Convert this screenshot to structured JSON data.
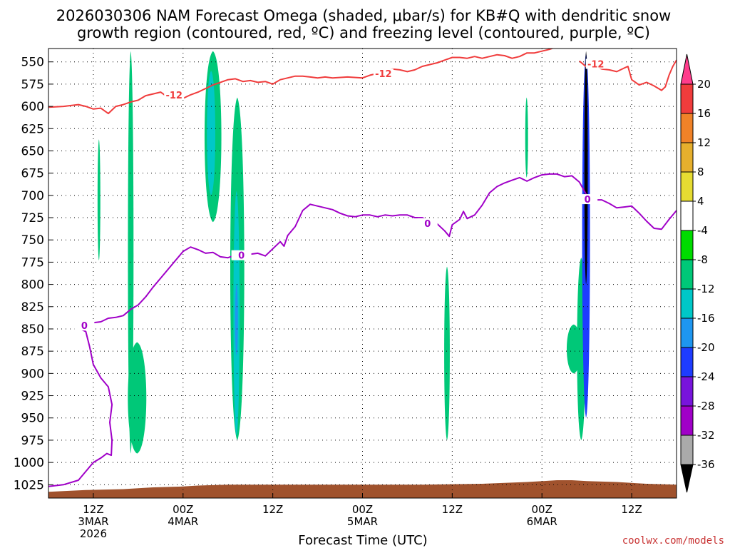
{
  "chart_data": {
    "type": "heatmap",
    "title_line1": "2026030306 NAM Forecast Omega (shaded, μbar/s) for KB#Q with dendritic snow",
    "title_line2": "growth region (contoured, red, ºC) and freezing level (contoured, purple, ºC)",
    "xlabel": "Forecast Time (UTC)",
    "ylabel": "",
    "y_axis": {
      "reversed": true,
      "unit": "hPa",
      "ticks": [
        550,
        575,
        600,
        625,
        650,
        675,
        700,
        725,
        750,
        775,
        800,
        825,
        850,
        875,
        900,
        925,
        950,
        975,
        1000,
        1025
      ],
      "range": [
        535,
        1040
      ]
    },
    "x_axis": {
      "unit": "hours from 2026030306",
      "range": [
        0,
        84
      ],
      "ticks": [
        {
          "x": 6,
          "lines": [
            "12Z",
            "3MAR",
            "2026"
          ]
        },
        {
          "x": 18,
          "lines": [
            "00Z",
            "4MAR"
          ]
        },
        {
          "x": 30,
          "lines": [
            "12Z"
          ]
        },
        {
          "x": 42,
          "lines": [
            "00Z",
            "5MAR"
          ]
        },
        {
          "x": 54,
          "lines": [
            "12Z"
          ]
        },
        {
          "x": 66,
          "lines": [
            "00Z",
            "6MAR"
          ]
        },
        {
          "x": 78,
          "lines": [
            "12Z"
          ]
        }
      ]
    },
    "grid": "dotted",
    "colorbar": {
      "labels": [
        "20",
        "16",
        "12",
        "8",
        "4",
        "-4",
        "-8",
        "-12",
        "-16",
        "-20",
        "-24",
        "-28",
        "-32",
        "-36"
      ],
      "levels": [
        20,
        16,
        12,
        8,
        4,
        -4,
        -8,
        -12,
        -16,
        -20,
        -24,
        -28,
        -32,
        -36
      ],
      "colors": [
        "#ff3c8c",
        "#f03c3c",
        "#f08228",
        "#e6af2d",
        "#e6dc32",
        "#ffffff",
        "#00dc00",
        "#00c878",
        "#00c8c8",
        "#1e96f0",
        "#1e3cff",
        "#7814dc",
        "#a000c8",
        "#aaaaaa",
        "#000000"
      ]
    },
    "dgz_contour": {
      "color": "#f03c3c",
      "label": "-12",
      "points": [
        [
          0,
          601
        ],
        [
          2,
          600
        ],
        [
          4,
          598
        ],
        [
          5,
          600
        ],
        [
          6,
          603
        ],
        [
          7,
          602
        ],
        [
          8,
          608
        ],
        [
          9,
          600
        ],
        [
          10,
          598
        ],
        [
          11,
          595
        ],
        [
          12,
          593
        ],
        [
          13,
          588
        ],
        [
          14,
          586
        ],
        [
          15,
          584
        ],
        [
          16,
          590
        ],
        [
          17,
          589
        ],
        [
          18,
          591
        ],
        [
          19,
          587
        ],
        [
          20,
          584
        ],
        [
          21,
          580
        ],
        [
          22,
          576
        ],
        [
          23,
          573
        ],
        [
          24,
          570
        ],
        [
          25,
          569
        ],
        [
          26,
          572
        ],
        [
          27,
          571
        ],
        [
          28,
          573
        ],
        [
          29,
          572
        ],
        [
          30,
          575
        ],
        [
          31,
          570
        ],
        [
          32,
          568
        ],
        [
          33,
          566
        ],
        [
          34,
          566
        ],
        [
          35,
          567
        ],
        [
          36,
          568
        ],
        [
          37,
          567
        ],
        [
          38,
          568
        ],
        [
          40,
          567
        ],
        [
          42,
          568
        ],
        [
          43,
          565
        ],
        [
          44,
          563
        ],
        [
          45,
          560
        ],
        [
          46,
          558
        ],
        [
          47,
          559
        ],
        [
          48,
          561
        ],
        [
          49,
          559
        ],
        [
          50,
          555
        ],
        [
          51,
          553
        ],
        [
          52,
          551
        ],
        [
          53,
          548
        ],
        [
          54,
          545
        ],
        [
          55,
          545
        ],
        [
          56,
          546
        ],
        [
          57,
          544
        ],
        [
          58,
          546
        ],
        [
          59,
          544
        ],
        [
          60,
          542
        ],
        [
          61,
          543
        ],
        [
          62,
          546
        ],
        [
          63,
          544
        ],
        [
          64,
          540
        ],
        [
          65,
          540
        ],
        [
          66,
          538
        ],
        [
          67,
          536
        ],
        [
          68,
          533
        ],
        [
          69,
          530
        ],
        [
          70,
          530
        ],
        [
          70.5,
          533
        ]
      ]
    },
    "dgz_contour_right": {
      "color": "#f03c3c",
      "points": [
        [
          71,
          549
        ],
        [
          72,
          556
        ],
        [
          73,
          555
        ],
        [
          74,
          558
        ],
        [
          75,
          559
        ],
        [
          76,
          561
        ],
        [
          77,
          557
        ],
        [
          77.5,
          555
        ],
        [
          78,
          570
        ],
        [
          79,
          576
        ],
        [
          80,
          573
        ],
        [
          81,
          577
        ],
        [
          82,
          582
        ],
        [
          82.5,
          578
        ],
        [
          83,
          565
        ],
        [
          83.5,
          555
        ],
        [
          84,
          548
        ]
      ]
    },
    "fz_contour": {
      "color": "#a000c8",
      "label": "0",
      "points": [
        [
          4,
          849
        ],
        [
          5,
          845
        ],
        [
          6,
          843
        ],
        [
          7,
          842
        ],
        [
          8,
          838
        ],
        [
          9,
          837
        ],
        [
          10,
          835
        ],
        [
          11,
          828
        ],
        [
          12,
          823
        ],
        [
          13,
          814
        ],
        [
          14,
          803
        ],
        [
          15,
          793
        ],
        [
          16,
          783
        ],
        [
          17,
          773
        ],
        [
          18,
          763
        ],
        [
          19,
          758
        ],
        [
          20,
          761
        ],
        [
          21,
          765
        ],
        [
          22,
          764
        ],
        [
          23,
          769
        ],
        [
          24,
          770
        ],
        [
          25,
          767
        ],
        [
          26,
          770
        ],
        [
          27,
          766
        ],
        [
          28,
          765
        ],
        [
          29,
          768
        ],
        [
          30,
          760
        ],
        [
          31,
          752
        ],
        [
          31.5,
          757
        ],
        [
          32,
          745
        ],
        [
          33,
          735
        ],
        [
          34,
          717
        ],
        [
          35,
          710
        ],
        [
          36,
          712
        ],
        [
          37,
          714
        ],
        [
          38,
          716
        ],
        [
          39,
          720
        ],
        [
          40,
          723
        ],
        [
          41,
          724
        ],
        [
          42,
          722
        ],
        [
          43,
          722
        ],
        [
          44,
          724
        ],
        [
          45,
          722
        ],
        [
          46,
          723
        ],
        [
          47,
          722
        ],
        [
          48,
          722
        ],
        [
          49,
          725
        ],
        [
          50,
          725
        ],
        [
          51,
          729
        ],
        [
          52,
          732
        ],
        [
          53,
          740
        ],
        [
          53.6,
          746
        ],
        [
          54,
          733
        ],
        [
          55,
          727
        ],
        [
          55.5,
          718
        ],
        [
          56,
          726
        ],
        [
          57,
          722
        ],
        [
          58,
          711
        ],
        [
          59,
          697
        ],
        [
          60,
          690
        ],
        [
          61,
          686
        ],
        [
          62,
          683
        ],
        [
          63,
          680
        ],
        [
          64,
          684
        ],
        [
          65,
          680
        ],
        [
          66,
          677
        ],
        [
          67,
          676
        ],
        [
          68,
          676
        ],
        [
          69,
          679
        ],
        [
          70,
          678
        ],
        [
          71,
          685
        ],
        [
          72,
          700
        ],
        [
          73,
          705
        ],
        [
          74,
          705
        ],
        [
          75,
          709
        ],
        [
          76,
          714
        ],
        [
          77,
          713
        ],
        [
          78,
          712
        ],
        [
          79,
          720
        ],
        [
          80,
          729
        ],
        [
          81,
          737
        ],
        [
          82,
          738
        ],
        [
          83,
          727
        ],
        [
          84,
          717
        ]
      ]
    },
    "fz_contour_lower": {
      "color": "#a000c8",
      "points": [
        [
          4,
          849
        ],
        [
          5,
          853
        ],
        [
          5.5,
          870
        ],
        [
          6,
          890
        ],
        [
          7,
          905
        ],
        [
          8,
          915
        ],
        [
          8.5,
          935
        ],
        [
          8.2,
          955
        ],
        [
          8.5,
          975
        ],
        [
          8.4,
          992
        ],
        [
          7.8,
          990
        ],
        [
          7,
          995
        ],
        [
          6,
          1000
        ],
        [
          5,
          1010
        ],
        [
          4,
          1020
        ],
        [
          2,
          1025
        ],
        [
          0,
          1027
        ]
      ]
    },
    "omega_shading": [
      {
        "level": "-8",
        "x": [
          6.5,
          7
        ],
        "p": [
          637,
          773
        ]
      },
      {
        "level": "-8",
        "x": [
          10.5,
          11.5
        ],
        "p": [
          538,
          990
        ]
      },
      {
        "level": "-8",
        "x": [
          10.2,
          13.5
        ],
        "p": [
          865,
          990
        ]
      },
      {
        "level": "-8",
        "x": [
          20.5,
          23.5
        ],
        "p": [
          538,
          730
        ]
      },
      {
        "level": "-8",
        "x": [
          24,
          26.5
        ],
        "p": [
          590,
          975
        ]
      },
      {
        "level": "-8",
        "x": [
          52.8,
          53.8
        ],
        "p": [
          780,
          975
        ]
      },
      {
        "level": "-8",
        "x": [
          63.7,
          64.2
        ],
        "p": [
          590,
          680
        ]
      },
      {
        "level": "-8",
        "x": [
          69,
          71.5
        ],
        "p": [
          845,
          900
        ]
      },
      {
        "level": "-8",
        "x": [
          70.5,
          72
        ],
        "p": [
          770,
          975
        ]
      },
      {
        "level": "-12",
        "x": [
          21,
          22.5
        ],
        "p": [
          560,
          700
        ]
      },
      {
        "level": "-12",
        "x": [
          24.6,
          25.7
        ],
        "p": [
          695,
          970
        ]
      },
      {
        "level": "-16",
        "x": [
          24.9,
          25.4
        ],
        "p": [
          800,
          880
        ]
      },
      {
        "level": "-20",
        "x": [
          71.2,
          72.6
        ],
        "p": [
          540,
          950
        ]
      },
      {
        "level": "-36",
        "x": [
          71.6,
          72.2
        ],
        "p": [
          538,
          800
        ]
      }
    ],
    "terrain": {
      "color": "#a0522d",
      "points": [
        [
          0,
          1033
        ],
        [
          5,
          1031
        ],
        [
          10,
          1030
        ],
        [
          14,
          1028
        ],
        [
          18,
          1027
        ],
        [
          20,
          1026
        ],
        [
          24,
          1025
        ],
        [
          34,
          1025
        ],
        [
          44,
          1025
        ],
        [
          50,
          1025
        ],
        [
          58,
          1024
        ],
        [
          64,
          1022
        ],
        [
          68,
          1020
        ],
        [
          70,
          1020
        ],
        [
          72,
          1021
        ],
        [
          76,
          1022
        ],
        [
          80,
          1024
        ],
        [
          84,
          1025
        ]
      ]
    }
  },
  "credit": "coolwx.com/models"
}
